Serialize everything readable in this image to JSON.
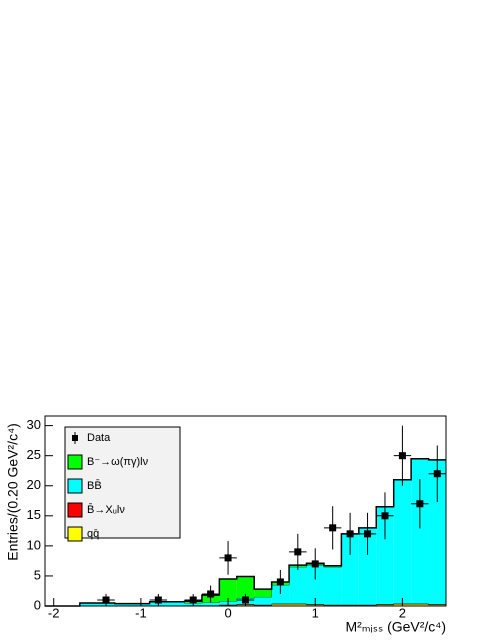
{
  "chart_data": {
    "type": "histogram",
    "ylabel": "Entries/(0.20 GeV²/c⁴)",
    "xlabel": "M²ₘᵢₛₛ (GeV²/c⁴)",
    "bins": [
      -2.1,
      -1.9,
      -1.7,
      -1.5,
      -1.3,
      -1.1,
      -0.9,
      -0.7,
      -0.5,
      -0.3,
      -0.1,
      0.1,
      0.3,
      0.5,
      0.7,
      0.9,
      1.1,
      1.3,
      1.5,
      1.7,
      1.9,
      2.1,
      2.3,
      2.5
    ],
    "series": [
      {
        "name": "qq̄",
        "color": "#ffff00",
        "values": [
          0,
          0,
          0,
          0,
          0,
          0,
          0,
          0,
          0.1,
          0.1,
          0.1,
          0.2,
          0.1,
          0.3,
          0.3,
          0.2,
          0.1,
          0.1,
          0.1,
          0.2,
          0.3,
          0.3,
          0.2
        ]
      },
      {
        "name": "B̄→Xᵤlν",
        "color": "#ff0000",
        "values": [
          0,
          0,
          0,
          0,
          0,
          0,
          0,
          0,
          0,
          0,
          0.1,
          0.1,
          0.1,
          0.1,
          0.1,
          0.1,
          0.1,
          0.1,
          0.1,
          0.1,
          0.1,
          0.1,
          0.1
        ]
      },
      {
        "name": "BB̄",
        "color": "#00ffff",
        "values": [
          0,
          0,
          0.5,
          0.5,
          0.4,
          0.4,
          0.7,
          0.7,
          0.4,
          0.5,
          0.6,
          1.0,
          1.3,
          3.1,
          6.1,
          6.5,
          6.3,
          11.8,
          12.8,
          16.2,
          20.6,
          24.1,
          24.0
        ]
      },
      {
        "name": "B⁻→ω(πγ)lν",
        "color": "#00ff00",
        "values": [
          0,
          0,
          0,
          0,
          0,
          0,
          0,
          0,
          0.3,
          1.2,
          3.7,
          3.6,
          1.3,
          0.5,
          0.3,
          0.3,
          0.2,
          0,
          0,
          0,
          0,
          0,
          0
        ]
      }
    ],
    "data": {
      "name": "Data",
      "color": "#000000",
      "x": [
        -1.4,
        -0.8,
        -0.4,
        -0.2,
        0.0,
        0.2,
        0.6,
        0.8,
        1.0,
        1.2,
        1.4,
        1.6,
        1.8,
        2.0,
        2.2,
        2.4
      ],
      "values": [
        1,
        1,
        1,
        2,
        8,
        1,
        4,
        9,
        7,
        13,
        12,
        12,
        15,
        25,
        17,
        22
      ],
      "yerr": [
        1,
        1,
        1,
        1.4,
        2.8,
        1,
        2,
        3,
        2.6,
        3.6,
        3.5,
        3.5,
        3.9,
        5,
        4.1,
        4.7
      ]
    },
    "xlim": [
      -2.1,
      2.5
    ],
    "ylim": [
      0,
      31.6
    ],
    "xticks": [
      -2,
      -1,
      0,
      1,
      2
    ],
    "yticks": [
      0,
      5,
      10,
      15,
      20,
      25,
      30
    ]
  }
}
